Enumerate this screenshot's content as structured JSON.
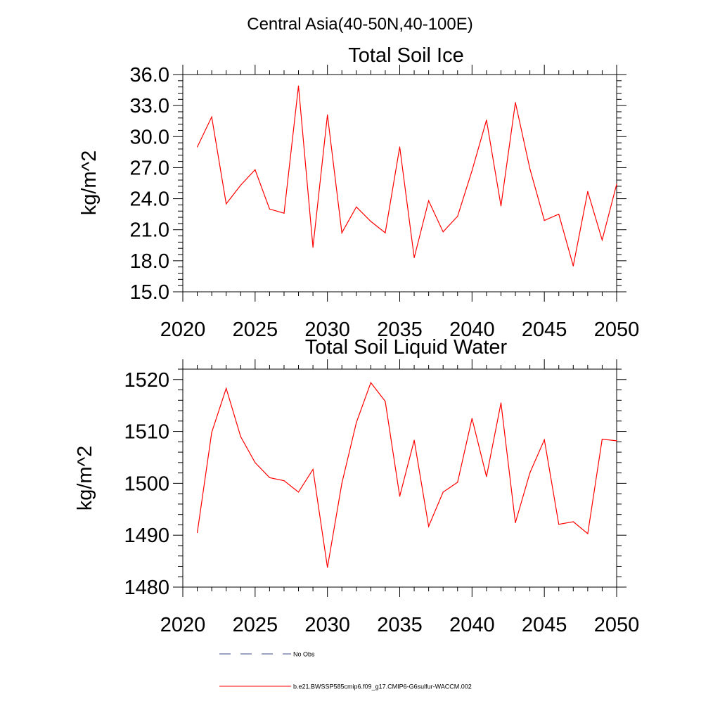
{
  "figure_title": "Central Asia(40-50N,40-100E)",
  "chart_data": [
    {
      "type": "line",
      "title": "Total Soil Ice",
      "ylabel": "kg/m^2",
      "xlabel": "",
      "xlim": [
        2020,
        2050
      ],
      "ylim": [
        15,
        36
      ],
      "xticks": [
        "2020",
        "2025",
        "2030",
        "2035",
        "2040",
        "2045",
        "2050"
      ],
      "yticks": [
        "15.0",
        "18.0",
        "21.0",
        "24.0",
        "27.0",
        "30.0",
        "33.0",
        "36.0"
      ],
      "series": [
        {
          "name": "b.e21.BWSSP585cmip6.f09_g17.CMIP6-G6sulfur-WACCM.002",
          "color": "#ff0000",
          "x": [
            2021,
            2022,
            2023,
            2024,
            2025,
            2026,
            2027,
            2028,
            2029,
            2030,
            2031,
            2032,
            2033,
            2034,
            2035,
            2036,
            2037,
            2038,
            2039,
            2040,
            2041,
            2042,
            2043,
            2044,
            2045,
            2046,
            2047,
            2048,
            2049,
            2050
          ],
          "values": [
            29.0,
            31.9,
            23.5,
            25.3,
            26.8,
            23.0,
            22.6,
            34.9,
            19.3,
            32.1,
            20.7,
            23.2,
            21.8,
            20.7,
            29.0,
            18.3,
            23.8,
            20.8,
            22.3,
            26.7,
            31.6,
            23.3,
            33.3,
            26.9,
            21.9,
            22.5,
            17.5,
            24.7,
            20.0,
            25.4
          ]
        }
      ]
    },
    {
      "type": "line",
      "title": "Total Soil Liquid Water",
      "ylabel": "kg/m^2",
      "xlabel": "",
      "xlim": [
        2020,
        2050
      ],
      "ylim": [
        1480,
        1522
      ],
      "xticks": [
        "2020",
        "2025",
        "2030",
        "2035",
        "2040",
        "2045",
        "2050"
      ],
      "yticks": [
        "1480",
        "1490",
        "1500",
        "1510",
        "1520"
      ],
      "series": [
        {
          "name": "b.e21.BWSSP585cmip6.f09_g17.CMIP6-G6sulfur-WACCM.002",
          "color": "#ff0000",
          "x": [
            2021,
            2022,
            2023,
            2024,
            2025,
            2026,
            2027,
            2028,
            2029,
            2030,
            2031,
            2032,
            2033,
            2034,
            2035,
            2036,
            2037,
            2038,
            2039,
            2040,
            2041,
            2042,
            2043,
            2044,
            2045,
            2046,
            2047,
            2048,
            2049,
            2050
          ],
          "values": [
            1490.5,
            1509.8,
            1518.3,
            1509.0,
            1504.0,
            1501.1,
            1500.5,
            1498.3,
            1502.7,
            1483.8,
            1500.0,
            1511.7,
            1519.4,
            1515.8,
            1497.5,
            1508.3,
            1491.7,
            1498.3,
            1500.2,
            1512.5,
            1501.3,
            1515.5,
            1492.4,
            1502.0,
            1508.4,
            1492.1,
            1492.6,
            1490.3,
            1508.5,
            1508.2
          ]
        }
      ]
    }
  ],
  "legend": [
    {
      "label": "No Obs",
      "style": "dashed",
      "color": "#3a4a8a"
    },
    {
      "label": "b.e21.BWSSP585cmip6.f09_g17.CMIP6-G6sulfur-WACCM.002",
      "style": "solid",
      "color": "#ff0000"
    }
  ]
}
